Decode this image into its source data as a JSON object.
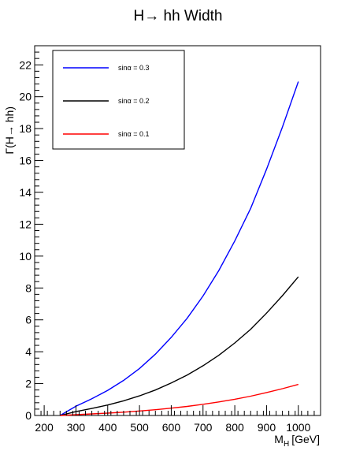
{
  "chart_data": {
    "type": "line",
    "title": "H→ hh Width",
    "xlabel_main": "M",
    "xlabel_sub": "H",
    "xlabel_unit": "[GeV]",
    "ylabel": "Γ(H→ hh)",
    "xlim": [
      170,
      1070
    ],
    "ylim": [
      0,
      23.2
    ],
    "x_ticks": [
      200,
      300,
      400,
      500,
      600,
      700,
      800,
      900,
      1000
    ],
    "y_ticks": [
      0,
      2,
      4,
      6,
      8,
      10,
      12,
      14,
      16,
      18,
      20,
      22
    ],
    "grid": false,
    "legend_position": "top-left",
    "series": [
      {
        "name": "sinα = 0.3",
        "color": "#0000ff",
        "x": [
          250,
          300,
          350,
          400,
          450,
          500,
          550,
          600,
          650,
          700,
          750,
          800,
          850,
          900,
          950,
          1000
        ],
        "y": [
          0.0,
          0.58,
          1.05,
          1.58,
          2.2,
          2.95,
          3.85,
          4.9,
          6.1,
          7.5,
          9.1,
          10.95,
          13.0,
          15.45,
          18.1,
          20.95
        ]
      },
      {
        "name": "sinα = 0.2",
        "color": "#000000",
        "x": [
          250,
          300,
          350,
          400,
          450,
          500,
          550,
          600,
          650,
          700,
          750,
          800,
          850,
          900,
          950,
          1000
        ],
        "y": [
          0.0,
          0.24,
          0.44,
          0.66,
          0.92,
          1.23,
          1.6,
          2.04,
          2.54,
          3.12,
          3.78,
          4.55,
          5.41,
          6.42,
          7.52,
          8.7
        ]
      },
      {
        "name": "sinα = 0.1",
        "color": "#ff0000",
        "x": [
          250,
          300,
          350,
          400,
          450,
          500,
          550,
          600,
          650,
          700,
          750,
          800,
          850,
          900,
          950,
          1000
        ],
        "y": [
          0.0,
          0.05,
          0.1,
          0.15,
          0.21,
          0.28,
          0.36,
          0.46,
          0.57,
          0.7,
          0.85,
          1.02,
          1.21,
          1.44,
          1.68,
          1.95
        ]
      }
    ]
  }
}
